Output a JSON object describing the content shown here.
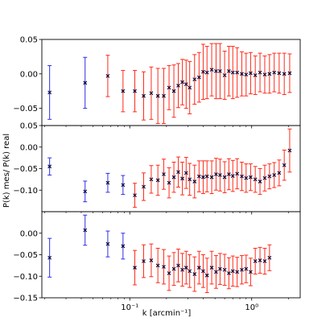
{
  "chart_data": {
    "type": "scatter",
    "ylabel": "P(k) mes/ P(k) real",
    "xlabel": "k [arcmin⁻¹]",
    "x_scale": "log",
    "xlim": [
      0.019,
      2.5
    ],
    "x_ticks": [
      {
        "value": 0.1,
        "label": "10⁻¹"
      },
      {
        "value": 1.0,
        "label": "10⁰"
      }
    ],
    "colors": {
      "blue_err": "#2f2fe6",
      "red_err": "#ff2a1a",
      "marker": "#000033"
    },
    "panels": [
      {
        "ylim": [
          -0.075,
          0.05
        ],
        "y_ticks": [
          0.05,
          0.0,
          -0.05
        ],
        "y_tick_labels": [
          "0.05",
          "0.00",
          "−0.05"
        ],
        "points": [
          {
            "k": 0.022,
            "y": -0.027,
            "err": 0.039,
            "err_color": "blue"
          },
          {
            "k": 0.043,
            "y": -0.013,
            "err": 0.037,
            "err_color": "blue"
          },
          {
            "k": 0.066,
            "y": -0.003,
            "err": 0.03,
            "err_color": "red"
          },
          {
            "k": 0.088,
            "y": -0.025,
            "err": 0.03,
            "err_color": "red"
          },
          {
            "k": 0.11,
            "y": -0.025,
            "err": 0.03,
            "err_color": "red"
          },
          {
            "k": 0.13,
            "y": -0.032,
            "err": 0.035,
            "err_color": "red"
          },
          {
            "k": 0.15,
            "y": -0.028,
            "err": 0.038,
            "err_color": "red"
          },
          {
            "k": 0.17,
            "y": -0.032,
            "err": 0.04,
            "err_color": "red"
          },
          {
            "k": 0.19,
            "y": -0.032,
            "err": 0.04,
            "err_color": "red"
          },
          {
            "k": 0.21,
            "y": -0.02,
            "err": 0.032,
            "err_color": "red"
          },
          {
            "k": 0.23,
            "y": -0.025,
            "err": 0.038,
            "err_color": "red"
          },
          {
            "k": 0.25,
            "y": -0.017,
            "err": 0.032,
            "err_color": "red"
          },
          {
            "k": 0.27,
            "y": -0.012,
            "err": 0.033,
            "err_color": "red"
          },
          {
            "k": 0.29,
            "y": -0.015,
            "err": 0.035,
            "err_color": "red"
          },
          {
            "k": 0.31,
            "y": -0.02,
            "err": 0.038,
            "err_color": "red"
          },
          {
            "k": 0.34,
            "y": -0.008,
            "err": 0.036,
            "err_color": "red"
          },
          {
            "k": 0.37,
            "y": -0.005,
            "err": 0.036,
            "err_color": "red"
          },
          {
            "k": 0.4,
            "y": 0.003,
            "err": 0.04,
            "err_color": "red"
          },
          {
            "k": 0.43,
            "y": 0.002,
            "err": 0.038,
            "err_color": "red"
          },
          {
            "k": 0.47,
            "y": 0.006,
            "err": 0.038,
            "err_color": "red"
          },
          {
            "k": 0.51,
            "y": 0.004,
            "err": 0.04,
            "err_color": "red"
          },
          {
            "k": 0.55,
            "y": 0.004,
            "err": 0.04,
            "err_color": "red"
          },
          {
            "k": 0.6,
            "y": -0.002,
            "err": 0.035,
            "err_color": "red"
          },
          {
            "k": 0.65,
            "y": 0.004,
            "err": 0.036,
            "err_color": "red"
          },
          {
            "k": 0.7,
            "y": 0.002,
            "err": 0.038,
            "err_color": "red"
          },
          {
            "k": 0.76,
            "y": 0.002,
            "err": 0.036,
            "err_color": "red"
          },
          {
            "k": 0.83,
            "y": 0.0,
            "err": 0.032,
            "err_color": "red"
          },
          {
            "k": 0.9,
            "y": -0.001,
            "err": 0.031,
            "err_color": "red"
          },
          {
            "k": 0.98,
            "y": 0.001,
            "err": 0.03,
            "err_color": "red"
          },
          {
            "k": 1.07,
            "y": -0.002,
            "err": 0.028,
            "err_color": "red"
          },
          {
            "k": 1.17,
            "y": 0.002,
            "err": 0.028,
            "err_color": "red"
          },
          {
            "k": 1.28,
            "y": -0.001,
            "err": 0.027,
            "err_color": "red"
          },
          {
            "k": 1.4,
            "y": 0.0,
            "err": 0.028,
            "err_color": "red"
          },
          {
            "k": 1.53,
            "y": 0.002,
            "err": 0.028,
            "err_color": "red"
          },
          {
            "k": 1.68,
            "y": 0.001,
            "err": 0.029,
            "err_color": "red"
          },
          {
            "k": 1.85,
            "y": 0.0,
            "err": 0.03,
            "err_color": "red"
          },
          {
            "k": 2.05,
            "y": 0.001,
            "err": 0.028,
            "err_color": "red"
          }
        ]
      },
      {
        "ylim": [
          -0.15,
          0.05
        ],
        "y_ticks": [
          0.05,
          0.0,
          -0.05,
          -0.1
        ],
        "y_tick_labels": [
          "0.05",
          "0.00",
          "−0.05",
          "−0.10"
        ],
        "points": [
          {
            "k": 0.022,
            "y": -0.045,
            "err": 0.02,
            "err_color": "blue"
          },
          {
            "k": 0.043,
            "y": -0.103,
            "err": 0.024,
            "err_color": "blue"
          },
          {
            "k": 0.066,
            "y": -0.083,
            "err": 0.022,
            "err_color": "blue"
          },
          {
            "k": 0.088,
            "y": -0.088,
            "err": 0.022,
            "err_color": "blue"
          },
          {
            "k": 0.11,
            "y": -0.112,
            "err": 0.028,
            "err_color": "red"
          },
          {
            "k": 0.13,
            "y": -0.092,
            "err": 0.032,
            "err_color": "red"
          },
          {
            "k": 0.15,
            "y": -0.075,
            "err": 0.032,
            "err_color": "red"
          },
          {
            "k": 0.17,
            "y": -0.077,
            "err": 0.035,
            "err_color": "red"
          },
          {
            "k": 0.19,
            "y": -0.063,
            "err": 0.035,
            "err_color": "red"
          },
          {
            "k": 0.21,
            "y": -0.083,
            "err": 0.035,
            "err_color": "red"
          },
          {
            "k": 0.23,
            "y": -0.07,
            "err": 0.035,
            "err_color": "red"
          },
          {
            "k": 0.25,
            "y": -0.058,
            "err": 0.035,
            "err_color": "red"
          },
          {
            "k": 0.27,
            "y": -0.073,
            "err": 0.038,
            "err_color": "red"
          },
          {
            "k": 0.29,
            "y": -0.06,
            "err": 0.036,
            "err_color": "red"
          },
          {
            "k": 0.31,
            "y": -0.075,
            "err": 0.037,
            "err_color": "red"
          },
          {
            "k": 0.34,
            "y": -0.08,
            "err": 0.038,
            "err_color": "red"
          },
          {
            "k": 0.37,
            "y": -0.068,
            "err": 0.036,
            "err_color": "red"
          },
          {
            "k": 0.4,
            "y": -0.07,
            "err": 0.038,
            "err_color": "red"
          },
          {
            "k": 0.43,
            "y": -0.068,
            "err": 0.036,
            "err_color": "red"
          },
          {
            "k": 0.47,
            "y": -0.07,
            "err": 0.038,
            "err_color": "red"
          },
          {
            "k": 0.51,
            "y": -0.063,
            "err": 0.037,
            "err_color": "red"
          },
          {
            "k": 0.55,
            "y": -0.065,
            "err": 0.037,
            "err_color": "red"
          },
          {
            "k": 0.6,
            "y": -0.07,
            "err": 0.036,
            "err_color": "red"
          },
          {
            "k": 0.65,
            "y": -0.063,
            "err": 0.036,
            "err_color": "red"
          },
          {
            "k": 0.7,
            "y": -0.067,
            "err": 0.036,
            "err_color": "red"
          },
          {
            "k": 0.76,
            "y": -0.062,
            "err": 0.035,
            "err_color": "red"
          },
          {
            "k": 0.83,
            "y": -0.068,
            "err": 0.033,
            "err_color": "red"
          },
          {
            "k": 0.9,
            "y": -0.072,
            "err": 0.033,
            "err_color": "red"
          },
          {
            "k": 0.98,
            "y": -0.07,
            "err": 0.031,
            "err_color": "red"
          },
          {
            "k": 1.07,
            "y": -0.075,
            "err": 0.03,
            "err_color": "red"
          },
          {
            "k": 1.17,
            "y": -0.08,
            "err": 0.03,
            "err_color": "red"
          },
          {
            "k": 1.28,
            "y": -0.072,
            "err": 0.03,
            "err_color": "red"
          },
          {
            "k": 1.4,
            "y": -0.068,
            "err": 0.029,
            "err_color": "red"
          },
          {
            "k": 1.53,
            "y": -0.065,
            "err": 0.029,
            "err_color": "red"
          },
          {
            "k": 1.68,
            "y": -0.06,
            "err": 0.03,
            "err_color": "red"
          },
          {
            "k": 1.85,
            "y": -0.042,
            "err": 0.035,
            "err_color": "red"
          },
          {
            "k": 2.05,
            "y": -0.008,
            "err": 0.05,
            "err_color": "red"
          }
        ]
      },
      {
        "ylim": [
          -0.15,
          0.05
        ],
        "y_ticks": [
          0.0,
          -0.05,
          -0.1,
          -0.15
        ],
        "y_tick_labels": [
          "0.00",
          "−0.05",
          "−0.10",
          "−0.15"
        ],
        "points": [
          {
            "k": 0.022,
            "y": -0.057,
            "err": 0.045,
            "err_color": "blue"
          },
          {
            "k": 0.043,
            "y": 0.007,
            "err": 0.035,
            "err_color": "blue"
          },
          {
            "k": 0.066,
            "y": -0.025,
            "err": 0.03,
            "err_color": "blue"
          },
          {
            "k": 0.088,
            "y": -0.03,
            "err": 0.03,
            "err_color": "blue"
          },
          {
            "k": 0.11,
            "y": -0.08,
            "err": 0.04,
            "err_color": "red"
          },
          {
            "k": 0.13,
            "y": -0.065,
            "err": 0.038,
            "err_color": "red"
          },
          {
            "k": 0.15,
            "y": -0.063,
            "err": 0.038,
            "err_color": "red"
          },
          {
            "k": 0.17,
            "y": -0.075,
            "err": 0.04,
            "err_color": "red"
          },
          {
            "k": 0.19,
            "y": -0.078,
            "err": 0.04,
            "err_color": "red"
          },
          {
            "k": 0.21,
            "y": -0.093,
            "err": 0.04,
            "err_color": "red"
          },
          {
            "k": 0.23,
            "y": -0.083,
            "err": 0.038,
            "err_color": "red"
          },
          {
            "k": 0.25,
            "y": -0.075,
            "err": 0.038,
            "err_color": "red"
          },
          {
            "k": 0.27,
            "y": -0.085,
            "err": 0.038,
            "err_color": "red"
          },
          {
            "k": 0.29,
            "y": -0.08,
            "err": 0.038,
            "err_color": "red"
          },
          {
            "k": 0.31,
            "y": -0.088,
            "err": 0.038,
            "err_color": "red"
          },
          {
            "k": 0.34,
            "y": -0.095,
            "err": 0.04,
            "err_color": "red"
          },
          {
            "k": 0.37,
            "y": -0.08,
            "err": 0.038,
            "err_color": "red"
          },
          {
            "k": 0.4,
            "y": -0.088,
            "err": 0.038,
            "err_color": "red"
          },
          {
            "k": 0.43,
            "y": -0.098,
            "err": 0.04,
            "err_color": "red"
          },
          {
            "k": 0.47,
            "y": -0.08,
            "err": 0.038,
            "err_color": "red"
          },
          {
            "k": 0.51,
            "y": -0.09,
            "err": 0.038,
            "err_color": "red"
          },
          {
            "k": 0.55,
            "y": -0.083,
            "err": 0.036,
            "err_color": "red"
          },
          {
            "k": 0.6,
            "y": -0.085,
            "err": 0.036,
            "err_color": "red"
          },
          {
            "k": 0.65,
            "y": -0.093,
            "err": 0.036,
            "err_color": "red"
          },
          {
            "k": 0.7,
            "y": -0.088,
            "err": 0.035,
            "err_color": "red"
          },
          {
            "k": 0.76,
            "y": -0.09,
            "err": 0.034,
            "err_color": "red"
          },
          {
            "k": 0.83,
            "y": -0.085,
            "err": 0.033,
            "err_color": "red"
          },
          {
            "k": 0.9,
            "y": -0.083,
            "err": 0.032,
            "err_color": "red"
          },
          {
            "k": 0.98,
            "y": -0.09,
            "err": 0.032,
            "err_color": "red"
          },
          {
            "k": 1.07,
            "y": -0.065,
            "err": 0.03,
            "err_color": "red"
          },
          {
            "k": 1.17,
            "y": -0.063,
            "err": 0.03,
            "err_color": "red"
          },
          {
            "k": 1.28,
            "y": -0.065,
            "err": 0.03,
            "err_color": "red"
          },
          {
            "k": 1.4,
            "y": -0.057,
            "err": 0.03,
            "err_color": "red"
          }
        ]
      }
    ]
  }
}
